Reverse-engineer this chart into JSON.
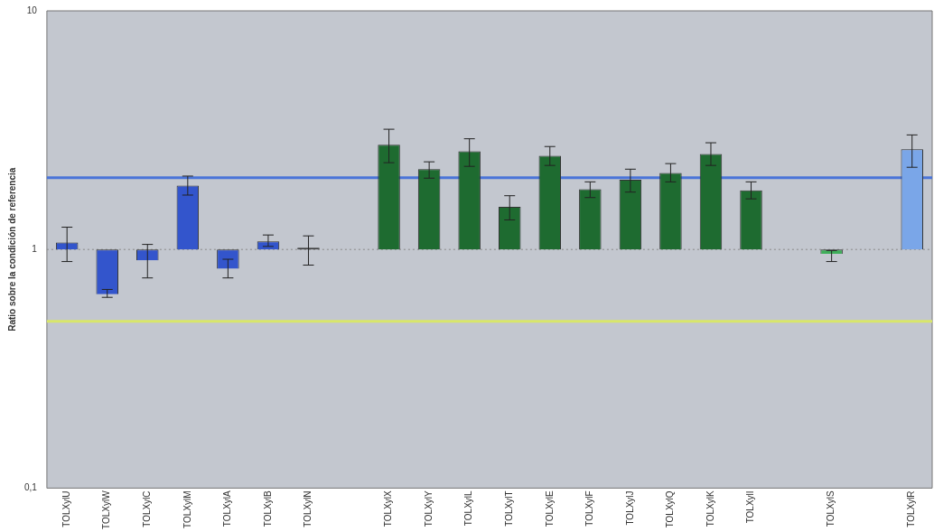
{
  "chart_data": {
    "type": "bar",
    "ylabel": "Ratio sobre la condición de referencia",
    "categories": [
      "TOLXylU",
      "TOLXylW",
      "TOLXylC",
      "TOLXylM",
      "TOLXylA",
      "TOLXylB",
      "TOLXylN",
      null,
      "TOLXylX",
      "TOLXylY",
      "TOLXylL",
      "TOLXylT",
      "TOLXylE",
      "TOLXylF",
      "TOLXylJ",
      "TOLXylQ",
      "TOLXylK",
      "TOLXylI",
      null,
      "TOLXylS",
      null,
      "TOLXylR"
    ],
    "base": [
      1,
      1,
      1,
      1,
      1,
      1,
      1,
      null,
      1,
      1,
      1,
      1,
      1,
      1,
      1,
      1,
      1,
      1,
      null,
      1,
      null,
      1
    ],
    "values": [
      0.07,
      -0.35,
      -0.1,
      0.85,
      -0.17,
      0.08,
      0,
      null,
      1.75,
      1.17,
      1.58,
      0.51,
      1.47,
      0.79,
      0.96,
      1.09,
      1.51,
      0.77,
      null,
      -0.04,
      null,
      1.63
    ],
    "errors": [
      [
        0.89,
        1.24
      ],
      [
        0.63,
        0.68
      ],
      [
        0.76,
        1.05
      ],
      [
        1.69,
        2.03
      ],
      [
        0.76,
        0.91
      ],
      [
        1.03,
        1.15
      ],
      [
        0.86,
        1.14
      ],
      null,
      [
        2.31,
        3.19
      ],
      [
        1.99,
        2.33
      ],
      [
        2.23,
        2.91
      ],
      [
        1.33,
        1.68
      ],
      [
        2.25,
        2.7
      ],
      [
        1.65,
        1.92
      ],
      [
        1.74,
        2.17
      ],
      [
        1.92,
        2.29
      ],
      [
        2.25,
        2.8
      ],
      [
        1.63,
        1.92
      ],
      null,
      [
        0.89,
        0.99
      ],
      null,
      [
        2.21,
        3.02
      ]
    ],
    "colors": [
      "#3355cc",
      "#3355cc",
      "#3355cc",
      "#3355cc",
      "#3355cc",
      "#3355cc",
      "#222222",
      "#3355cc",
      "#1e6b30",
      "#1e6b30",
      "#1e6b30",
      "#1e6b30",
      "#1e6b30",
      "#1e6b30",
      "#1e6b30",
      "#1e6b30",
      "#1e6b30",
      "#1e6b30",
      "#1e6b30",
      "#3fae5a",
      "#3fae5a",
      "#7aa6e8"
    ],
    "log": "y",
    "ylim": [
      0.1,
      10
    ],
    "yticks": [
      {
        "value": 0.1,
        "label": "0,1"
      },
      1,
      10
    ],
    "ref_lines": [
      {
        "axis": "y",
        "value": 2,
        "color": "#4a74d8",
        "line_style": "solid"
      },
      {
        "axis": "y",
        "value": 0.5,
        "color": "#d8e66a",
        "line_style": "solid"
      },
      {
        "axis": "y",
        "value": 1,
        "color": "#888888",
        "line_style": "dotted"
      }
    ]
  }
}
